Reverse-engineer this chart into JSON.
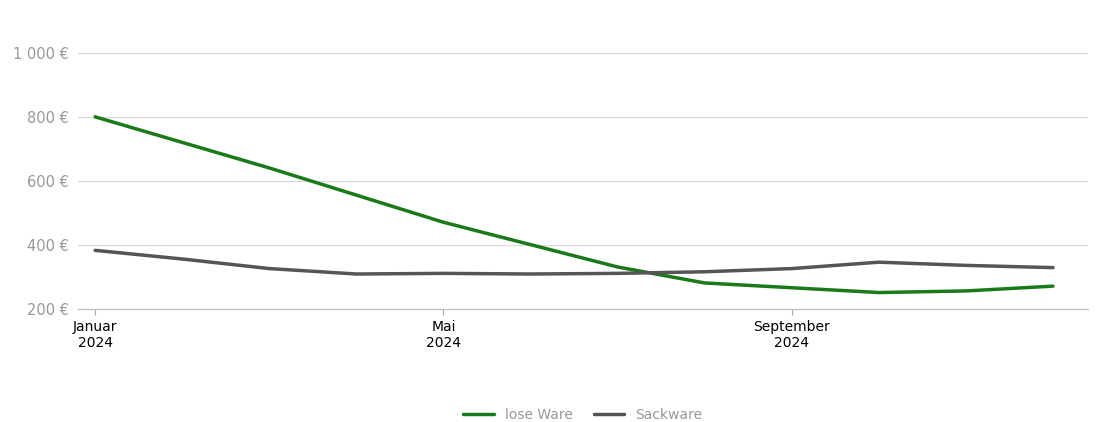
{
  "background_color": "#ffffff",
  "grid_color": "#d8d8d8",
  "lose_ware_color": "#1a7a1a",
  "sackware_color": "#555555",
  "lose_ware_label": "lose Ware",
  "sackware_label": "Sackware",
  "line_width": 2.5,
  "ylim": [
    175,
    1060
  ],
  "yticks": [
    200,
    400,
    600,
    800,
    1000
  ],
  "ytick_labels": [
    "200 €",
    "400 €",
    "600 €",
    "800 €",
    "1 000 €"
  ],
  "xtick_positions": [
    0,
    4,
    8
  ],
  "xtick_labels": [
    "Januar\n2024",
    "Mai\n2024",
    "September\n2024"
  ],
  "lose_ware_x": [
    0,
    1,
    2,
    3,
    4,
    5,
    6,
    7,
    8,
    9,
    10,
    11
  ],
  "lose_ware_y": [
    800,
    720,
    640,
    555,
    470,
    400,
    330,
    280,
    265,
    250,
    255,
    270
  ],
  "sackware_x": [
    0,
    1,
    2,
    3,
    4,
    5,
    6,
    7,
    8,
    9,
    10,
    11
  ],
  "sackware_y": [
    382,
    355,
    325,
    308,
    310,
    308,
    310,
    315,
    325,
    345,
    335,
    328
  ],
  "legend_fontsize": 10,
  "tick_color": "#999999",
  "tick_fontsize": 10.5,
  "spine_color": "#bbbbbb",
  "tick_mark_color": "#aaaaaa",
  "xlim_min": -0.2,
  "xlim_max": 11.4
}
